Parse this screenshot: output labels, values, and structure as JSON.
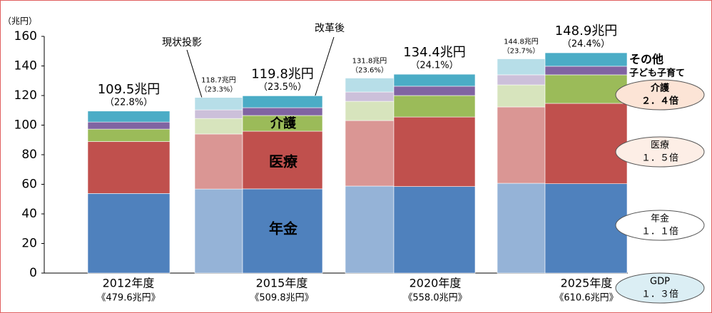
{
  "chart_data": {
    "type": "bar",
    "y_unit": "（兆円）",
    "categories": [
      "2012年度",
      "2015年度",
      "2020年度",
      "2025年度"
    ],
    "gdp_labels": [
      "《479.6兆円》",
      "《509.8兆円》",
      "《558.0兆円》",
      "《610.6兆円》"
    ],
    "ylim": [
      0,
      160
    ],
    "yticks": [
      0,
      20,
      40,
      60,
      80,
      100,
      120,
      140,
      160
    ],
    "reform_label": "改革後",
    "projection_label": "現状投影",
    "series": [
      {
        "name": "年金",
        "color": "#4f81bd",
        "light_color": "#95b3d7",
        "values": [
          53.8,
          56.9,
          58.5,
          60.4
        ],
        "projected": [
          null,
          56.8,
          58.8,
          60.7
        ]
      },
      {
        "name": "医療",
        "color": "#c0504d",
        "light_color": "#da9694",
        "values": [
          35.1,
          39.0,
          47.0,
          54.3
        ],
        "projected": [
          null,
          37.2,
          44.3,
          51.6
        ]
      },
      {
        "name": "介護",
        "color": "#9bbb59",
        "light_color": "#d7e4bd",
        "values": [
          8.4,
          10.6,
          14.5,
          19.3
        ],
        "projected": [
          null,
          10.5,
          13.0,
          14.9
        ]
      },
      {
        "name": "子ども子育て",
        "color": "#8064a2",
        "light_color": "#ccc0da",
        "values": [
          4.8,
          5.3,
          6.3,
          5.8
        ],
        "projected": [
          null,
          5.8,
          6.3,
          6.8
        ]
      },
      {
        "name": "その他",
        "color": "#4bacc6",
        "light_color": "#b7dee8",
        "values": [
          7.4,
          8.0,
          8.1,
          9.1
        ],
        "projected": [
          null,
          8.4,
          9.4,
          10.8
        ]
      }
    ],
    "totals": [
      109.5,
      119.8,
      134.4,
      148.9
    ],
    "total_labels": [
      "109.5兆円",
      "119.8兆円",
      "134.4兆円",
      "148.9兆円"
    ],
    "shares": [
      22.8,
      23.5,
      24.1,
      24.4
    ],
    "share_labels": [
      "（22.8%）",
      "（23.5％）",
      "（24.1%）",
      "（24.4%）"
    ],
    "projected_totals": [
      null,
      118.7,
      131.8,
      144.8
    ],
    "projected_total_labels": [
      null,
      "118.7兆円",
      "131.8兆円",
      "144.8兆円"
    ],
    "projected_shares": [
      null,
      23.3,
      23.6,
      23.7
    ],
    "projected_share_labels": [
      null,
      "（23.3%）",
      "（23.6%）",
      "（23.7%）"
    ],
    "growth": [
      {
        "label": "介護",
        "ratio": "２．４倍"
      },
      {
        "label": "医療",
        "ratio": "１．５倍"
      },
      {
        "label": "年金",
        "ratio": "１．１倍"
      },
      {
        "label": "GDP",
        "ratio": "１．３倍"
      }
    ]
  }
}
